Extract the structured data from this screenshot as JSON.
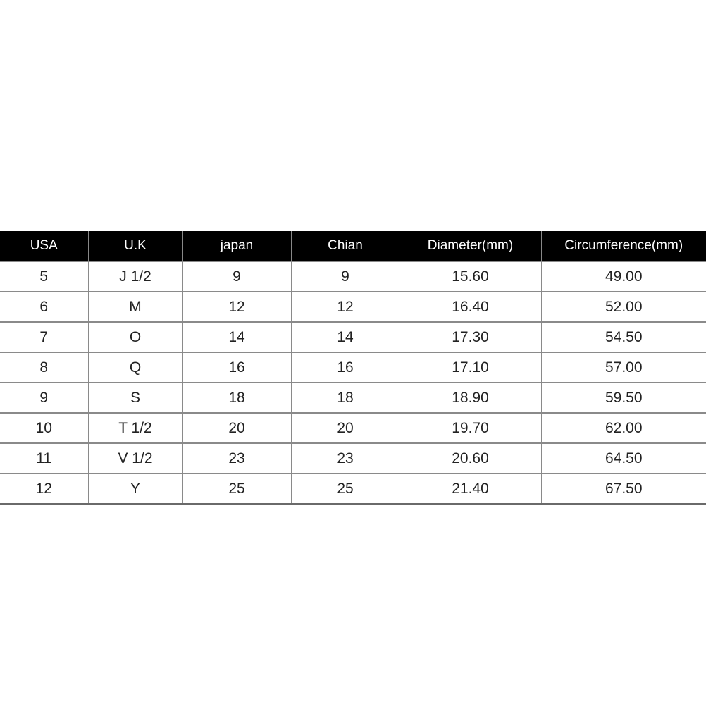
{
  "table": {
    "headers": [
      "USA",
      "U.K",
      "japan",
      "Chian",
      "Diameter(mm)",
      "Circumference(mm)"
    ],
    "rows": [
      [
        "5",
        "J 1/2",
        "9",
        "9",
        "15.60",
        "49.00"
      ],
      [
        "6",
        "M",
        "12",
        "12",
        "16.40",
        "52.00"
      ],
      [
        "7",
        "O",
        "14",
        "14",
        "17.30",
        "54.50"
      ],
      [
        "8",
        "Q",
        "16",
        "16",
        "17.10",
        "57.00"
      ],
      [
        "9",
        "S",
        "18",
        "18",
        "18.90",
        "59.50"
      ],
      [
        "10",
        "T 1/2",
        "20",
        "20",
        "19.70",
        "62.00"
      ],
      [
        "11",
        "V 1/2",
        "23",
        "23",
        "20.60",
        "64.50"
      ],
      [
        "12",
        "Y",
        "25",
        "25",
        "21.40",
        "67.50"
      ]
    ]
  },
  "colors": {
    "header_bg": "#000000",
    "header_text": "#ffffff",
    "grid": "#8a8a8a"
  }
}
